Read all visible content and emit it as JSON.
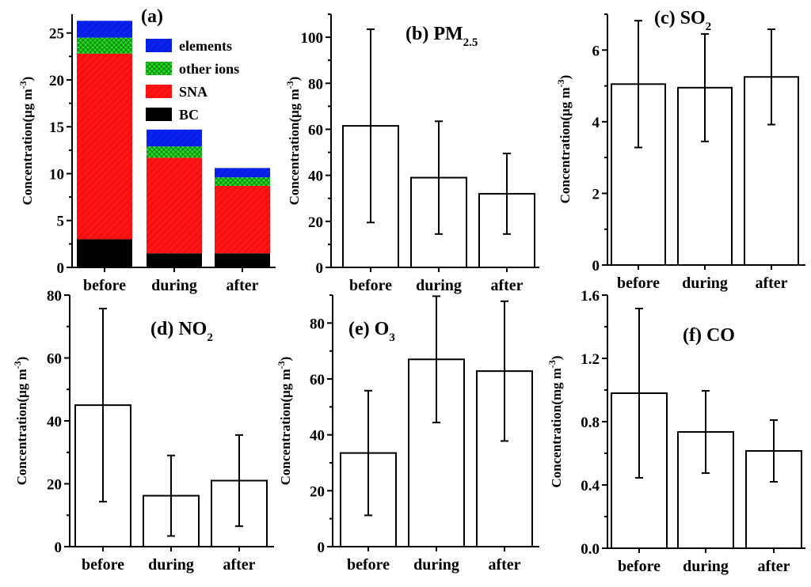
{
  "figure": {
    "ylabel_text": "Concentration(",
    "unit_ug": "μg m",
    "unit_mg": "mg m",
    "unit_sup": "-3",
    "unit_close": ")"
  },
  "colors": {
    "elements": "#0a22f0",
    "other_ions": "#22dd22",
    "SNA": "#ff1414",
    "BC": "#000000",
    "bar_fill": "#ffffff",
    "stroke": "#000000"
  },
  "chart_data": [
    {
      "id": "a",
      "type": "bar",
      "stacked": true,
      "title": "(a)",
      "categories": [
        "before",
        "during",
        "after"
      ],
      "ylabel": "Concentration(μg m-3)",
      "ylim": [
        0,
        27
      ],
      "yticks": [
        0,
        5,
        10,
        15,
        20,
        25
      ],
      "legend": [
        "elements",
        "other ions",
        "SNA",
        "BC"
      ],
      "series": [
        {
          "name": "BC",
          "values": [
            3.0,
            1.5,
            1.5
          ]
        },
        {
          "name": "SNA",
          "values": [
            19.8,
            10.2,
            7.2
          ]
        },
        {
          "name": "other ions",
          "values": [
            1.7,
            1.2,
            0.9
          ]
        },
        {
          "name": "elements",
          "values": [
            1.8,
            1.8,
            1.0
          ]
        }
      ]
    },
    {
      "id": "b",
      "type": "bar",
      "title": "(b) PM",
      "title_sub": "2.5",
      "categories": [
        "before",
        "during",
        "after"
      ],
      "values": [
        61.5,
        39,
        32
      ],
      "errors": [
        42,
        24.5,
        17.5
      ],
      "ylabel": "Concentration(μg m-3)",
      "ylim": [
        0,
        110
      ],
      "yticks": [
        0,
        20,
        40,
        60,
        80,
        100
      ]
    },
    {
      "id": "c",
      "type": "bar",
      "title": "(c) SO",
      "title_sub": "2",
      "categories": [
        "before",
        "during",
        "after"
      ],
      "values": [
        5.05,
        4.95,
        5.25
      ],
      "errors": [
        1.77,
        1.5,
        1.33
      ],
      "ylabel": "Concentration(μg m-3)",
      "ylim": [
        0,
        7
      ],
      "yticks": [
        0,
        2,
        4,
        6
      ]
    },
    {
      "id": "d",
      "type": "bar",
      "title": "(d) NO",
      "title_sub": "2",
      "categories": [
        "before",
        "during",
        "after"
      ],
      "values": [
        45,
        16.2,
        21
      ],
      "errors": [
        30.7,
        12.8,
        14.5
      ],
      "ylabel": "Concentration(μg m-3)",
      "ylim": [
        0,
        80
      ],
      "yticks": [
        0,
        20,
        40,
        60,
        80
      ]
    },
    {
      "id": "e",
      "type": "bar",
      "title": "(e) O",
      "title_sub": "3",
      "categories": [
        "before",
        "during",
        "after"
      ],
      "values": [
        33.5,
        67,
        62.8
      ],
      "errors": [
        22.3,
        22.6,
        25
      ],
      "ylabel": "Concentration(μg m-3)",
      "ylim": [
        0,
        90
      ],
      "yticks": [
        0,
        20,
        40,
        60,
        80
      ]
    },
    {
      "id": "f",
      "type": "bar",
      "title": "(f) CO",
      "title_sub": "",
      "categories": [
        "before",
        "during",
        "after"
      ],
      "values": [
        0.98,
        0.735,
        0.615
      ],
      "errors": [
        0.535,
        0.26,
        0.195
      ],
      "ylabel": "Concentration(mg m-3)",
      "ylim": [
        0,
        1.6
      ],
      "yticks": [
        0.0,
        0.4,
        0.8,
        1.2,
        1.6
      ],
      "tick_decimals": 1
    }
  ]
}
